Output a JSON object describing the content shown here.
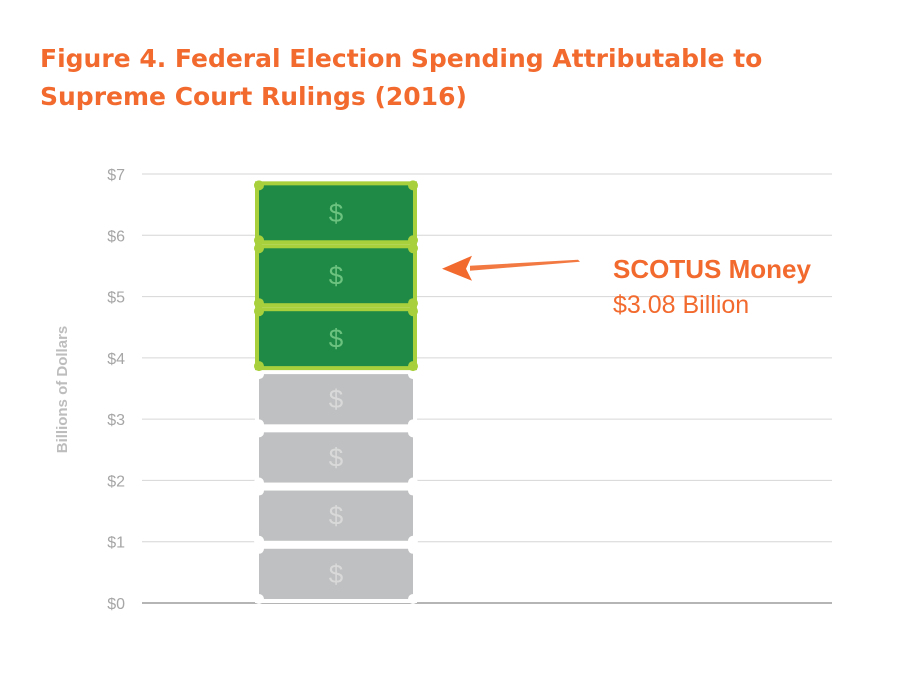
{
  "title": {
    "line1": "Figure 4. Federal Election Spending Attributable to",
    "line2": "Supreme Court Rulings (2016)"
  },
  "annotation": {
    "title": "SCOTUS Money",
    "value": "$3.08 Billion"
  },
  "chart_data": {
    "type": "bar",
    "title": "Figure 4. Federal Election Spending Attributable to Supreme Court Rulings (2016)",
    "ylabel": "Billions of Dollars",
    "xlabel": "",
    "ylim": [
      0,
      7
    ],
    "yticks": [
      "$0",
      "$1",
      "$2",
      "$3",
      "$4",
      "$5",
      "$6",
      "$7"
    ],
    "grid": true,
    "series": [
      {
        "values": [
          3.8
        ]
      },
      {
        "name": "SCOTUS Money",
        "values": [
          3.08
        ]
      }
    ],
    "bill_symbol": "$",
    "colors": {
      "other_fill": "#bfc0c1",
      "other_symbol": "#d9d9d9",
      "scotus_fill": "#1f8a46",
      "scotus_border": "#a8d03c",
      "scotus_symbol": "#6cc27f",
      "accent": "#f26a2e",
      "grid": "#d6d6d6",
      "axis": "#b5b5b5"
    }
  }
}
